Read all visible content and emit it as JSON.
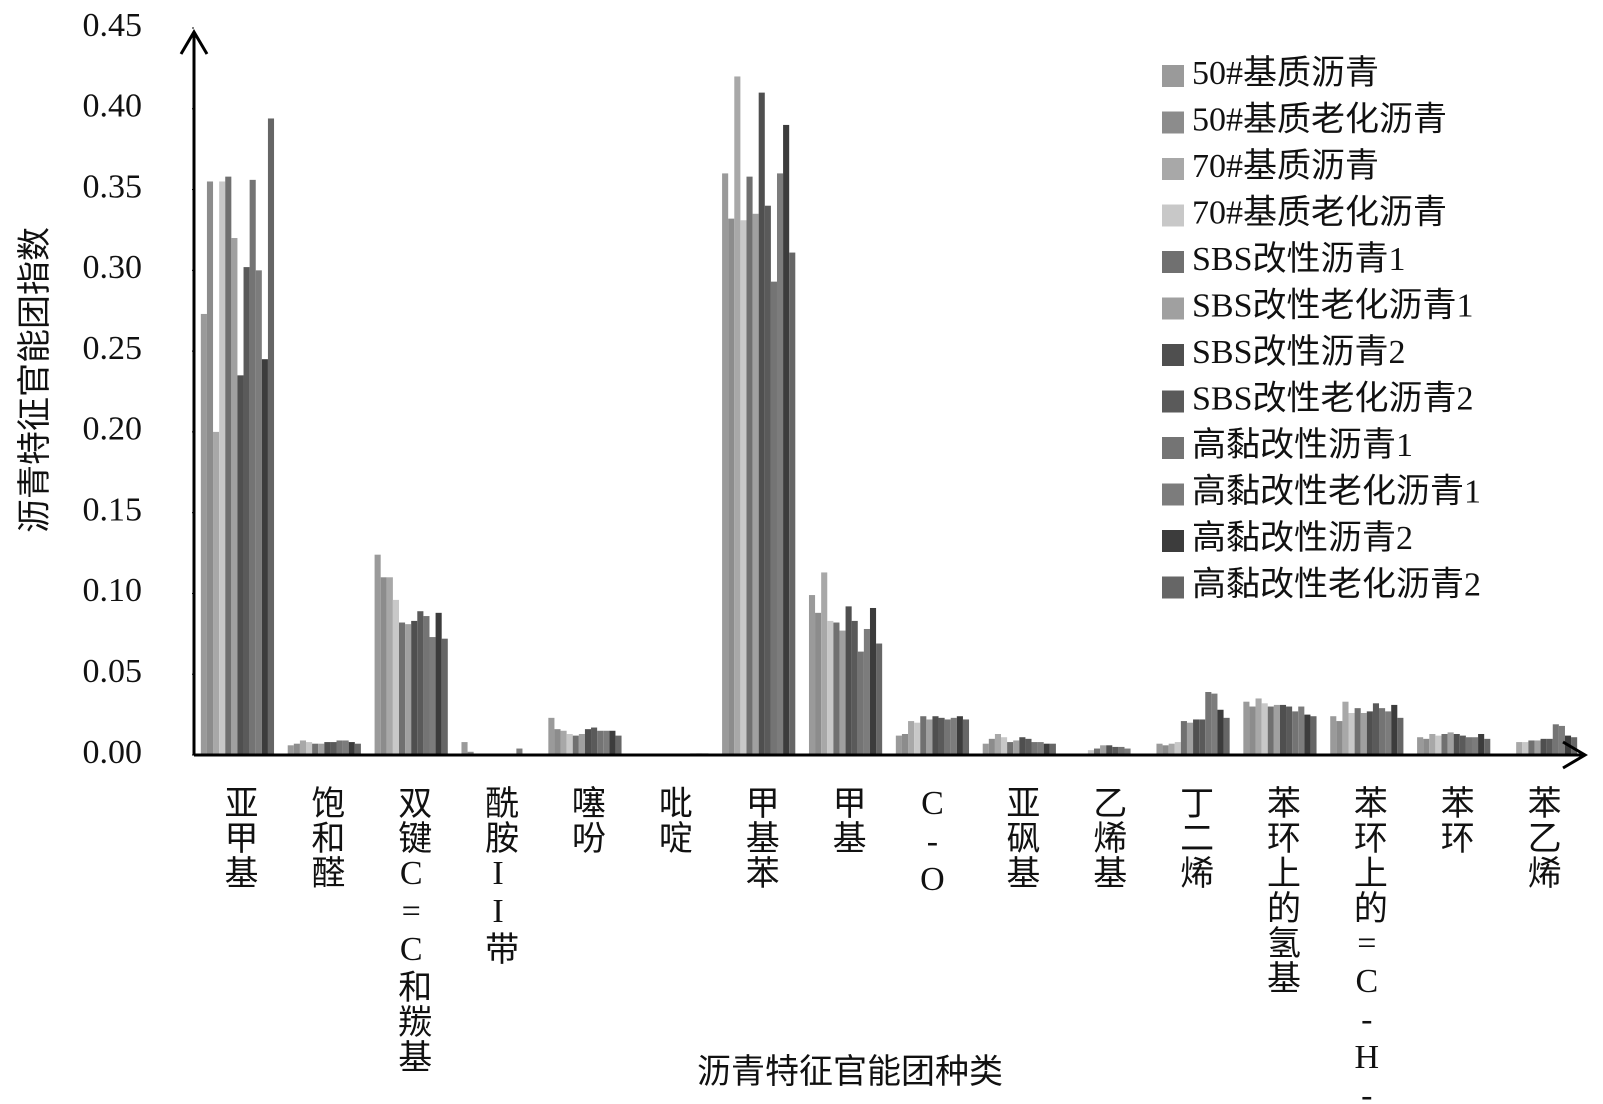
{
  "chart_data": {
    "type": "bar",
    "y_label": "沥青特征官能团指数",
    "x_label": "沥青特征官能团种类",
    "categories": [
      "亚甲基",
      "饱和醛",
      "双键C=C和羰基",
      "酰胺II带",
      "噻吩",
      "吡啶",
      "甲基苯",
      "甲基",
      "C-O",
      "亚砜基",
      "乙烯基",
      "丁二烯",
      "苯环上的氢基",
      "苯环上的=C-H-",
      "苯环",
      "苯乙烯"
    ],
    "ylim": [
      0,
      0.45
    ],
    "yticks": [
      {
        "value": 0,
        "label": "0.00"
      },
      {
        "value": 0.05,
        "label": "0.05"
      },
      {
        "value": 0.1,
        "label": "0.10"
      },
      {
        "value": 0.15,
        "label": "0.15"
      },
      {
        "value": 0.2,
        "label": "0.20"
      },
      {
        "value": 0.25,
        "label": "0.25"
      },
      {
        "value": 0.3,
        "label": "0.30"
      },
      {
        "value": 0.35,
        "label": "0.35"
      },
      {
        "value": 0.4,
        "label": "0.40"
      },
      {
        "value": 0.45,
        "label": "0.45"
      }
    ],
    "series": [
      {
        "name": "50#基质沥青",
        "color": "#9a9a9a",
        "values": [
          0.273,
          0.006,
          0.124,
          0.008,
          0.023,
          0,
          0.36,
          0.099,
          0.012,
          0.007,
          0,
          0.007,
          0.033,
          0.024,
          0.011,
          0
        ]
      },
      {
        "name": "50#基质老化沥青",
        "color": "#8c8c8c",
        "values": [
          0.355,
          0.007,
          0.11,
          0.002,
          0.016,
          0,
          0.332,
          0.088,
          0.013,
          0.01,
          0,
          0.006,
          0.03,
          0.021,
          0.01,
          0
        ]
      },
      {
        "name": "70#基质沥青",
        "color": "#a8a8a8",
        "values": [
          0.2,
          0.009,
          0.11,
          0,
          0.015,
          0,
          0.42,
          0.113,
          0.021,
          0.013,
          0,
          0.007,
          0.035,
          0.033,
          0.013,
          0.008
        ]
      },
      {
        "name": "70#基质老化沥青",
        "color": "#c8c8c8",
        "values": [
          0.355,
          0.008,
          0.096,
          0,
          0.013,
          0,
          0.331,
          0.083,
          0.02,
          0.011,
          0.003,
          0.008,
          0.032,
          0.026,
          0.012,
          0.008
        ]
      },
      {
        "name": "SBS改性沥青1",
        "color": "#707070",
        "values": [
          0.358,
          0.007,
          0.082,
          0,
          0.012,
          0,
          0.358,
          0.082,
          0.024,
          0.008,
          0.004,
          0.021,
          0.03,
          0.029,
          0.013,
          0.009
        ]
      },
      {
        "name": "SBS改性老化沥青1",
        "color": "#a0a0a0",
        "values": [
          0.32,
          0.007,
          0.081,
          0,
          0.013,
          0,
          0.335,
          0.077,
          0.022,
          0.009,
          0.006,
          0.02,
          0.031,
          0.026,
          0.014,
          0.009
        ]
      },
      {
        "name": "SBS改性沥青2",
        "color": "#4f4f4f",
        "values": [
          0.235,
          0.008,
          0.083,
          0,
          0.016,
          0,
          0.41,
          0.092,
          0.024,
          0.011,
          0.006,
          0.022,
          0.031,
          0.027,
          0.013,
          0.01
        ]
      },
      {
        "name": "SBS改性老化沥青2",
        "color": "#5a5a5a",
        "values": [
          0.302,
          0.008,
          0.089,
          0,
          0.017,
          0,
          0.34,
          0.083,
          0.023,
          0.01,
          0.005,
          0.022,
          0.03,
          0.032,
          0.012,
          0.01
        ]
      },
      {
        "name": "高黏改性沥青1",
        "color": "#747474",
        "values": [
          0.356,
          0.009,
          0.086,
          0,
          0.015,
          0,
          0.293,
          0.064,
          0.022,
          0.008,
          0.005,
          0.039,
          0.027,
          0.029,
          0.011,
          0.019
        ]
      },
      {
        "name": "高黏改性老化沥青1",
        "color": "#7c7c7c",
        "values": [
          0.3,
          0.009,
          0.073,
          0.004,
          0.015,
          0.001,
          0.36,
          0.078,
          0.023,
          0.008,
          0.004,
          0.038,
          0.03,
          0.027,
          0.011,
          0.018
        ]
      },
      {
        "name": "高黏改性沥青2",
        "color": "#3c3c3c",
        "values": [
          0.245,
          0.008,
          0.088,
          0,
          0.015,
          0.001,
          0.39,
          0.091,
          0.024,
          0.007,
          0,
          0.028,
          0.025,
          0.031,
          0.013,
          0.012
        ]
      },
      {
        "name": "高黏改性老化沥青2",
        "color": "#666666",
        "values": [
          0.394,
          0.007,
          0.072,
          0,
          0.012,
          0.001,
          0.311,
          0.069,
          0.022,
          0.007,
          0,
          0.023,
          0.024,
          0.023,
          0.01,
          0.011
        ]
      }
    ]
  }
}
